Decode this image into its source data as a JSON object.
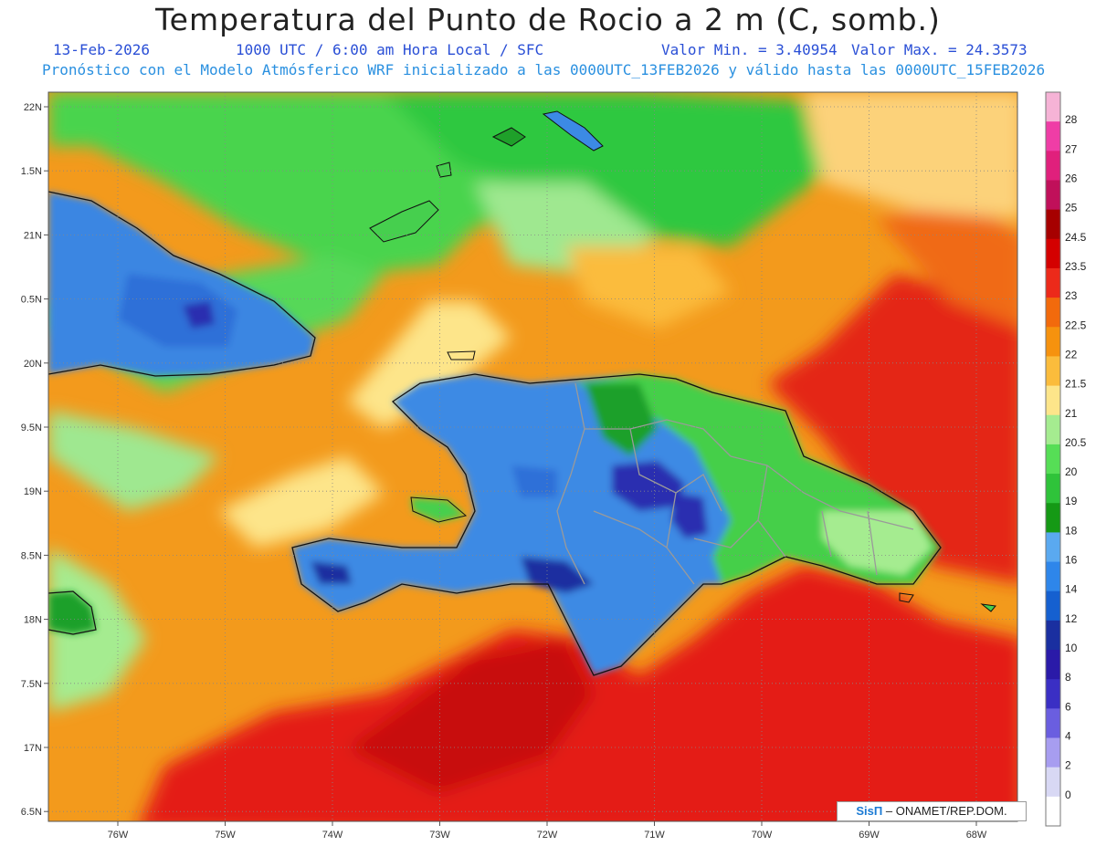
{
  "header": {
    "title": "Temperatura del Punto de Rocio a 2 m (C, somb.)",
    "date": "13-Feb-2026",
    "time": "1000 UTC / 6:00 am Hora Local / SFC",
    "min_label": "Valor Min. = 3.40954",
    "max_label": "Valor Max. = 24.3573",
    "model_info": "Pronóstico con el Modelo Atmósferico WRF inicializado a las 0000UTC_13FEB2026 y válido hasta las  0000UTC_15FEB2026"
  },
  "axes": {
    "lat_labels": [
      "22N",
      "1.5N",
      "21N",
      "0.5N",
      "20N",
      "9.5N",
      "19N",
      "8.5N",
      "18N",
      "7.5N",
      "17N",
      "6.5N"
    ],
    "lon_labels": [
      "76W",
      "75W",
      "74W",
      "73W",
      "72W",
      "71W",
      "70W",
      "69W",
      "68W"
    ]
  },
  "colorbar": {
    "labels": [
      "28",
      "27",
      "26",
      "25",
      "24.5",
      "23.5",
      "23",
      "22.5",
      "22",
      "21.5",
      "21",
      "20.5",
      "20",
      "19",
      "18",
      "16",
      "14",
      "12",
      "10",
      "8",
      "6",
      "4",
      "2",
      "0"
    ],
    "colors": [
      "#f6b3d6",
      "#ef3da6",
      "#e0207c",
      "#c0105a",
      "#a60000",
      "#d40000",
      "#ec2a1a",
      "#f26a0c",
      "#f6920e",
      "#fbbc3c",
      "#fde58a",
      "#a5ec90",
      "#56de56",
      "#2fc33a",
      "#159915",
      "#5aa9f0",
      "#2e86ea",
      "#1560d0",
      "#1a2fa0",
      "#2a1aa8",
      "#3a2fc4",
      "#6a5ee0",
      "#a79df0",
      "#d8d8f4",
      "#ffffff"
    ]
  },
  "credit": {
    "logo": "SisΠ",
    "text": " – ONAMET/REP.DOM."
  },
  "palette": {
    "background": "#f49a18",
    "ocean_red": "#e41e12",
    "land_blue": "#3c8ae4",
    "land_green": "#3ec84a"
  }
}
